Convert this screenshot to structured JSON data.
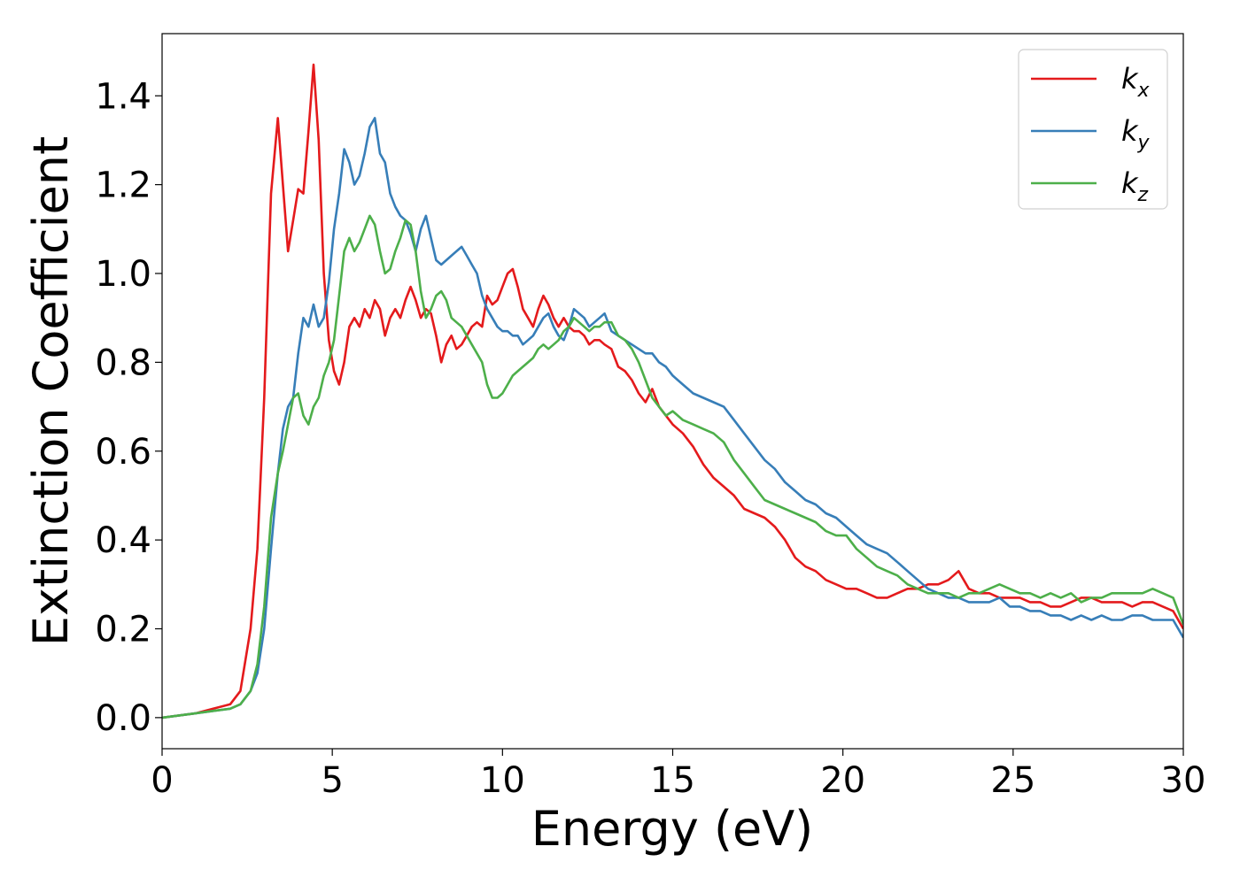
{
  "chart_data": {
    "type": "line",
    "title": "",
    "xlabel": "Energy (eV)",
    "ylabel": "Extinction Coefficient",
    "xlim": [
      0,
      30
    ],
    "ylim": [
      -0.07,
      1.54
    ],
    "xticks": [
      0,
      5,
      10,
      15,
      20,
      25,
      30
    ],
    "xtick_labels": [
      "0",
      "5",
      "10",
      "15",
      "20",
      "25",
      "30"
    ],
    "yticks": [
      0.0,
      0.2,
      0.4,
      0.6,
      0.8,
      1.0,
      1.2,
      1.4
    ],
    "ytick_labels": [
      "0.0",
      "0.2",
      "0.4",
      "0.6",
      "0.8",
      "1.0",
      "1.2",
      "1.4"
    ],
    "grid": false,
    "legend_position": "top-right",
    "series": [
      {
        "name": "k_x",
        "label_main": "k",
        "label_sub": "x",
        "color": "#e41a1c",
        "x": [
          0,
          1,
          1.5,
          2,
          2.3,
          2.6,
          2.8,
          3.0,
          3.2,
          3.4,
          3.55,
          3.7,
          3.85,
          4.0,
          4.15,
          4.3,
          4.45,
          4.6,
          4.75,
          4.9,
          5.05,
          5.2,
          5.35,
          5.5,
          5.65,
          5.8,
          5.95,
          6.1,
          6.25,
          6.4,
          6.55,
          6.7,
          6.85,
          7.0,
          7.15,
          7.3,
          7.45,
          7.6,
          7.75,
          7.9,
          8.05,
          8.2,
          8.35,
          8.5,
          8.65,
          8.8,
          8.95,
          9.1,
          9.25,
          9.4,
          9.55,
          9.7,
          9.85,
          10.0,
          10.15,
          10.3,
          10.45,
          10.6,
          10.75,
          10.9,
          11.05,
          11.2,
          11.35,
          11.5,
          11.65,
          11.8,
          11.95,
          12.1,
          12.25,
          12.4,
          12.55,
          12.7,
          12.85,
          13.0,
          13.2,
          13.4,
          13.6,
          13.8,
          14.0,
          14.2,
          14.4,
          14.6,
          14.8,
          15.0,
          15.3,
          15.6,
          15.9,
          16.2,
          16.5,
          16.8,
          17.1,
          17.4,
          17.7,
          18.0,
          18.3,
          18.6,
          18.9,
          19.2,
          19.5,
          19.8,
          20.1,
          20.4,
          20.7,
          21.0,
          21.3,
          21.6,
          21.9,
          22.2,
          22.5,
          22.8,
          23.1,
          23.4,
          23.7,
          24.0,
          24.3,
          24.6,
          24.9,
          25.2,
          25.5,
          25.8,
          26.1,
          26.4,
          26.7,
          27.0,
          27.3,
          27.6,
          27.9,
          28.2,
          28.5,
          28.8,
          29.1,
          29.4,
          29.7,
          30.0
        ],
        "y": [
          0.0,
          0.01,
          0.02,
          0.03,
          0.06,
          0.2,
          0.38,
          0.72,
          1.18,
          1.35,
          1.2,
          1.05,
          1.12,
          1.19,
          1.18,
          1.32,
          1.47,
          1.3,
          1.0,
          0.85,
          0.78,
          0.75,
          0.8,
          0.88,
          0.9,
          0.88,
          0.92,
          0.9,
          0.94,
          0.92,
          0.86,
          0.9,
          0.92,
          0.9,
          0.94,
          0.97,
          0.94,
          0.9,
          0.92,
          0.91,
          0.86,
          0.8,
          0.84,
          0.86,
          0.83,
          0.84,
          0.86,
          0.88,
          0.89,
          0.88,
          0.95,
          0.93,
          0.94,
          0.97,
          1.0,
          1.01,
          0.97,
          0.92,
          0.9,
          0.88,
          0.92,
          0.95,
          0.93,
          0.9,
          0.88,
          0.9,
          0.88,
          0.87,
          0.87,
          0.86,
          0.84,
          0.85,
          0.85,
          0.84,
          0.83,
          0.79,
          0.78,
          0.76,
          0.73,
          0.71,
          0.74,
          0.7,
          0.68,
          0.66,
          0.64,
          0.61,
          0.57,
          0.54,
          0.52,
          0.5,
          0.47,
          0.46,
          0.45,
          0.43,
          0.4,
          0.36,
          0.34,
          0.33,
          0.31,
          0.3,
          0.29,
          0.29,
          0.28,
          0.27,
          0.27,
          0.28,
          0.29,
          0.29,
          0.3,
          0.3,
          0.31,
          0.33,
          0.29,
          0.28,
          0.28,
          0.27,
          0.27,
          0.27,
          0.26,
          0.26,
          0.25,
          0.25,
          0.26,
          0.27,
          0.27,
          0.26,
          0.26,
          0.26,
          0.25,
          0.26,
          0.26,
          0.25,
          0.24,
          0.2
        ],
        "y_note": ""
      },
      {
        "name": "k_y",
        "label_main": "k",
        "label_sub": "y",
        "color": "#377eb8",
        "x": [
          0,
          1,
          1.5,
          2,
          2.3,
          2.6,
          2.8,
          3.0,
          3.2,
          3.4,
          3.55,
          3.7,
          3.85,
          4.0,
          4.15,
          4.3,
          4.45,
          4.6,
          4.75,
          4.9,
          5.05,
          5.2,
          5.35,
          5.5,
          5.65,
          5.8,
          5.95,
          6.1,
          6.25,
          6.4,
          6.55,
          6.7,
          6.85,
          7.0,
          7.15,
          7.3,
          7.45,
          7.6,
          7.75,
          7.9,
          8.05,
          8.2,
          8.35,
          8.5,
          8.65,
          8.8,
          8.95,
          9.1,
          9.25,
          9.4,
          9.55,
          9.7,
          9.85,
          10.0,
          10.15,
          10.3,
          10.45,
          10.6,
          10.75,
          10.9,
          11.05,
          11.2,
          11.35,
          11.5,
          11.65,
          11.8,
          11.95,
          12.1,
          12.25,
          12.4,
          12.55,
          12.7,
          12.85,
          13.0,
          13.2,
          13.4,
          13.6,
          13.8,
          14.0,
          14.2,
          14.4,
          14.6,
          14.8,
          15.0,
          15.3,
          15.6,
          15.9,
          16.2,
          16.5,
          16.8,
          17.1,
          17.4,
          17.7,
          18.0,
          18.3,
          18.6,
          18.9,
          19.2,
          19.5,
          19.8,
          20.1,
          20.4,
          20.7,
          21.0,
          21.3,
          21.6,
          21.9,
          22.2,
          22.5,
          22.8,
          23.1,
          23.4,
          23.7,
          24.0,
          24.3,
          24.6,
          24.9,
          25.2,
          25.5,
          25.8,
          26.1,
          26.4,
          26.7,
          27.0,
          27.3,
          27.6,
          27.9,
          28.2,
          28.5,
          28.8,
          29.1,
          29.4,
          29.7,
          30.0
        ],
        "y": [
          0.0,
          0.01,
          0.015,
          0.02,
          0.03,
          0.06,
          0.1,
          0.2,
          0.38,
          0.55,
          0.65,
          0.7,
          0.72,
          0.82,
          0.9,
          0.88,
          0.93,
          0.88,
          0.9,
          0.98,
          1.1,
          1.18,
          1.28,
          1.25,
          1.2,
          1.22,
          1.27,
          1.33,
          1.35,
          1.27,
          1.25,
          1.18,
          1.15,
          1.13,
          1.12,
          1.09,
          1.05,
          1.1,
          1.13,
          1.08,
          1.03,
          1.02,
          1.03,
          1.04,
          1.05,
          1.06,
          1.04,
          1.02,
          1.0,
          0.95,
          0.92,
          0.9,
          0.88,
          0.87,
          0.87,
          0.86,
          0.86,
          0.84,
          0.85,
          0.86,
          0.88,
          0.9,
          0.91,
          0.88,
          0.86,
          0.85,
          0.88,
          0.92,
          0.91,
          0.9,
          0.88,
          0.89,
          0.9,
          0.91,
          0.87,
          0.86,
          0.85,
          0.84,
          0.83,
          0.82,
          0.82,
          0.8,
          0.79,
          0.77,
          0.75,
          0.73,
          0.72,
          0.71,
          0.7,
          0.67,
          0.64,
          0.61,
          0.58,
          0.56,
          0.53,
          0.51,
          0.49,
          0.48,
          0.46,
          0.45,
          0.43,
          0.41,
          0.39,
          0.38,
          0.37,
          0.35,
          0.33,
          0.31,
          0.29,
          0.28,
          0.27,
          0.27,
          0.26,
          0.26,
          0.26,
          0.27,
          0.25,
          0.25,
          0.24,
          0.24,
          0.23,
          0.23,
          0.22,
          0.23,
          0.22,
          0.23,
          0.22,
          0.22,
          0.23,
          0.23,
          0.22,
          0.22,
          0.22,
          0.18
        ],
        "y_note": ""
      },
      {
        "name": "k_z",
        "label_main": "k",
        "label_sub": "z",
        "color": "#4daf4a",
        "x": [
          0,
          1,
          1.5,
          2,
          2.3,
          2.6,
          2.8,
          3.0,
          3.2,
          3.4,
          3.55,
          3.7,
          3.85,
          4.0,
          4.15,
          4.3,
          4.45,
          4.6,
          4.75,
          4.9,
          5.05,
          5.2,
          5.35,
          5.5,
          5.65,
          5.8,
          5.95,
          6.1,
          6.25,
          6.4,
          6.55,
          6.7,
          6.85,
          7.0,
          7.15,
          7.3,
          7.45,
          7.6,
          7.75,
          7.9,
          8.05,
          8.2,
          8.35,
          8.5,
          8.65,
          8.8,
          8.95,
          9.1,
          9.25,
          9.4,
          9.55,
          9.7,
          9.85,
          10.0,
          10.15,
          10.3,
          10.45,
          10.6,
          10.75,
          10.9,
          11.05,
          11.2,
          11.35,
          11.5,
          11.65,
          11.8,
          11.95,
          12.1,
          12.25,
          12.4,
          12.55,
          12.7,
          12.85,
          13.0,
          13.2,
          13.4,
          13.6,
          13.8,
          14.0,
          14.2,
          14.4,
          14.6,
          14.8,
          15.0,
          15.3,
          15.6,
          15.9,
          16.2,
          16.5,
          16.8,
          17.1,
          17.4,
          17.7,
          18.0,
          18.3,
          18.6,
          18.9,
          19.2,
          19.5,
          19.8,
          20.1,
          20.4,
          20.7,
          21.0,
          21.3,
          21.6,
          21.9,
          22.2,
          22.5,
          22.8,
          23.1,
          23.4,
          23.7,
          24.0,
          24.3,
          24.6,
          24.9,
          25.2,
          25.5,
          25.8,
          26.1,
          26.4,
          26.7,
          27.0,
          27.3,
          27.6,
          27.9,
          28.2,
          28.5,
          28.8,
          29.1,
          29.4,
          29.7,
          30.0
        ],
        "y": [
          0.0,
          0.01,
          0.015,
          0.02,
          0.03,
          0.06,
          0.12,
          0.25,
          0.45,
          0.55,
          0.6,
          0.66,
          0.72,
          0.73,
          0.68,
          0.66,
          0.7,
          0.72,
          0.77,
          0.8,
          0.85,
          0.95,
          1.05,
          1.08,
          1.05,
          1.07,
          1.1,
          1.13,
          1.11,
          1.05,
          1.0,
          1.01,
          1.05,
          1.08,
          1.12,
          1.11,
          1.05,
          0.96,
          0.9,
          0.92,
          0.95,
          0.96,
          0.94,
          0.9,
          0.89,
          0.88,
          0.86,
          0.84,
          0.82,
          0.8,
          0.75,
          0.72,
          0.72,
          0.73,
          0.75,
          0.77,
          0.78,
          0.79,
          0.8,
          0.81,
          0.83,
          0.84,
          0.83,
          0.84,
          0.85,
          0.87,
          0.88,
          0.9,
          0.89,
          0.88,
          0.87,
          0.88,
          0.88,
          0.89,
          0.89,
          0.86,
          0.85,
          0.83,
          0.8,
          0.76,
          0.72,
          0.7,
          0.68,
          0.69,
          0.67,
          0.66,
          0.65,
          0.64,
          0.62,
          0.58,
          0.55,
          0.52,
          0.49,
          0.48,
          0.47,
          0.46,
          0.45,
          0.44,
          0.42,
          0.41,
          0.41,
          0.38,
          0.36,
          0.34,
          0.33,
          0.32,
          0.3,
          0.29,
          0.28,
          0.28,
          0.28,
          0.27,
          0.28,
          0.28,
          0.29,
          0.3,
          0.29,
          0.28,
          0.28,
          0.27,
          0.28,
          0.27,
          0.28,
          0.26,
          0.27,
          0.27,
          0.28,
          0.28,
          0.28,
          0.28,
          0.29,
          0.28,
          0.27,
          0.21
        ],
        "y_note": ""
      }
    ]
  }
}
